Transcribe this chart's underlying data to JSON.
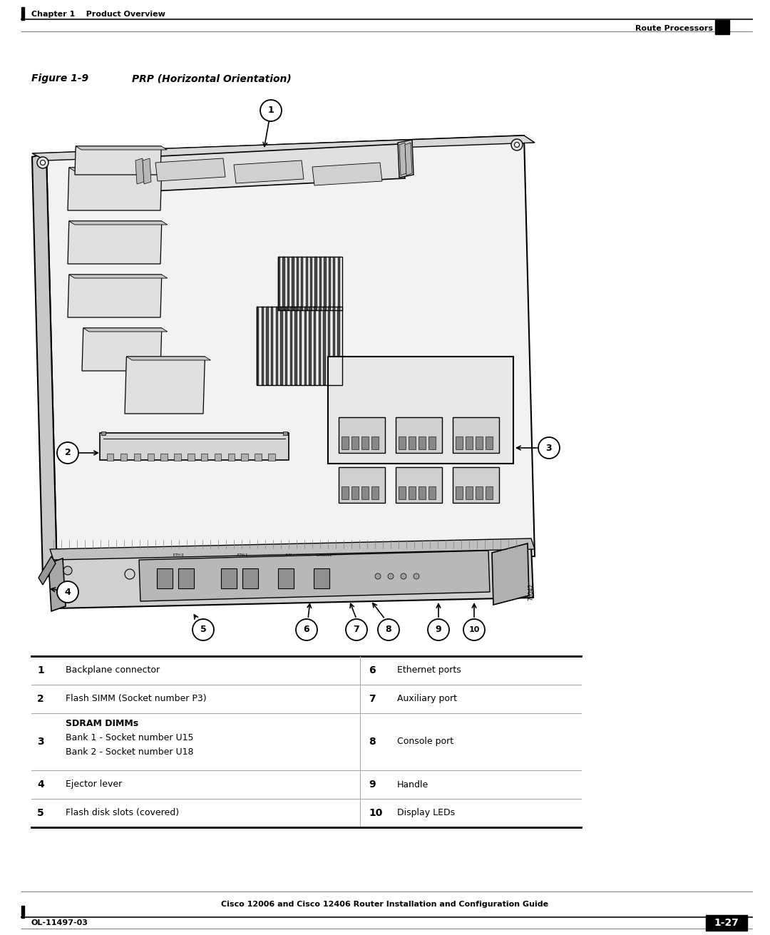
{
  "page_title_left": "Chapter 1    Product Overview",
  "page_title_right": "Route Processors",
  "figure_label": "Figure 1-9",
  "figure_title": "PRP (Horizontal Orientation)",
  "footer_center": "Cisco 12006 and Cisco 12406 Router Installation and Configuration Guide",
  "footer_left": "OL-11497-03",
  "footer_right": "1-27",
  "bg_color": "#ffffff",
  "text_color": "#000000"
}
